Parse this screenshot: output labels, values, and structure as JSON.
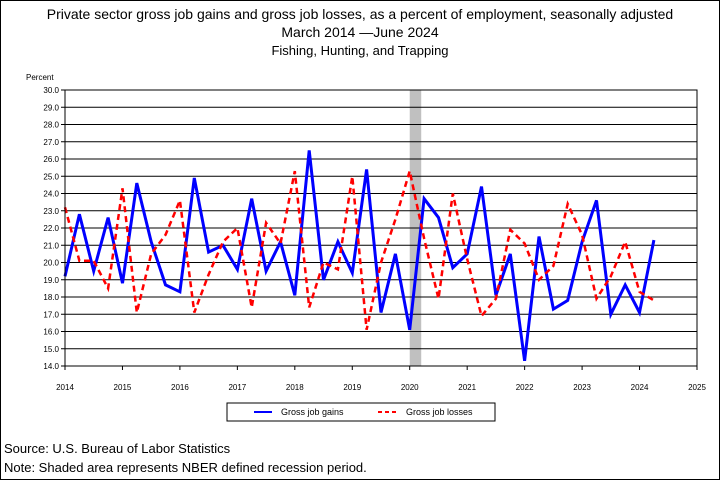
{
  "titles": {
    "line1": "Private sector gross job gains and gross job losses, as a percent of employment, seasonally adjusted",
    "line2": "March 2014 —June 2024",
    "line3": "Fishing, Hunting, and Trapping"
  },
  "footer": {
    "source": "Source: U.S. Bureau of Labor Statistics",
    "note": "Note: Shaded area represents NBER defined recession period."
  },
  "chart_data": {
    "type": "line",
    "title": "Private sector gross job gains and gross job losses, as a percent of employment, seasonally adjusted",
    "subtitle": "March 2014 —June 2024",
    "xlabel": "",
    "ylabel": "Percent",
    "ylim": [
      14.0,
      30.0
    ],
    "ytick_labels": [
      "14.0",
      "15.0",
      "16.0",
      "17.0",
      "18.0",
      "19.0",
      "20.0",
      "21.0",
      "22.0",
      "23.0",
      "24.0",
      "25.0",
      "26.0",
      "27.0",
      "28.0",
      "29.0",
      "30.0"
    ],
    "xlim": [
      2014.0,
      2025.0
    ],
    "xtick_labels": [
      "2014",
      "2015",
      "2016",
      "2017",
      "2018",
      "2019",
      "2020",
      "2021",
      "2022",
      "2023",
      "2024",
      "2025"
    ],
    "grid": true,
    "legend_position": "bottom",
    "recession_shading": [
      2020.0,
      2020.2
    ],
    "series": [
      {
        "name": "Gross job gains",
        "color": "#0000ff",
        "style": "solid",
        "x": [
          2014.0,
          2014.25,
          2014.5,
          2014.75,
          2015.0,
          2015.25,
          2015.5,
          2015.75,
          2016.0,
          2016.25,
          2016.5,
          2016.75,
          2017.0,
          2017.25,
          2017.5,
          2017.75,
          2018.0,
          2018.25,
          2018.5,
          2018.75,
          2019.0,
          2019.25,
          2019.5,
          2019.75,
          2020.0,
          2020.25,
          2020.5,
          2020.75,
          2021.0,
          2021.25,
          2021.5,
          2021.75,
          2022.0,
          2022.25,
          2022.5,
          2022.75,
          2023.0,
          2023.25,
          2023.5,
          2023.75,
          2024.0,
          2024.25
        ],
        "values": [
          19.2,
          22.8,
          19.5,
          22.6,
          18.8,
          24.6,
          21.2,
          18.7,
          18.3,
          24.9,
          20.6,
          21.0,
          19.6,
          23.7,
          19.5,
          21.2,
          18.1,
          26.5,
          19.0,
          21.2,
          19.4,
          25.4,
          17.1,
          20.5,
          16.1,
          23.7,
          22.6,
          19.7,
          20.5,
          24.4,
          18.1,
          20.5,
          14.3,
          21.5,
          17.3,
          17.8,
          21.2,
          23.6,
          17.0,
          18.7,
          17.1,
          21.3
        ]
      },
      {
        "name": "Gross job losses",
        "color": "#ff0000",
        "style": "dashed",
        "x": [
          2014.0,
          2014.25,
          2014.5,
          2014.75,
          2015.0,
          2015.25,
          2015.5,
          2015.75,
          2016.0,
          2016.25,
          2016.5,
          2016.75,
          2017.0,
          2017.25,
          2017.5,
          2017.75,
          2018.0,
          2018.25,
          2018.5,
          2018.75,
          2019.0,
          2019.25,
          2019.5,
          2019.75,
          2020.0,
          2020.25,
          2020.5,
          2020.75,
          2021.0,
          2021.25,
          2021.5,
          2021.75,
          2022.0,
          2022.25,
          2022.5,
          2022.75,
          2023.0,
          2023.25,
          2023.5,
          2023.75,
          2024.0,
          2024.25
        ],
        "values": [
          23.2,
          20.1,
          20.1,
          18.5,
          24.3,
          17.1,
          20.5,
          21.6,
          23.6,
          17.1,
          19.3,
          21.2,
          22.0,
          17.4,
          22.3,
          21.1,
          25.3,
          17.4,
          20.0,
          19.6,
          25.0,
          16.1,
          20.0,
          22.5,
          25.3,
          21.4,
          17.9,
          24.0,
          20.2,
          16.9,
          17.9,
          21.9,
          21.1,
          19.0,
          19.8,
          23.4,
          21.6,
          17.9,
          19.2,
          21.2,
          18.3,
          17.8
        ]
      }
    ]
  }
}
